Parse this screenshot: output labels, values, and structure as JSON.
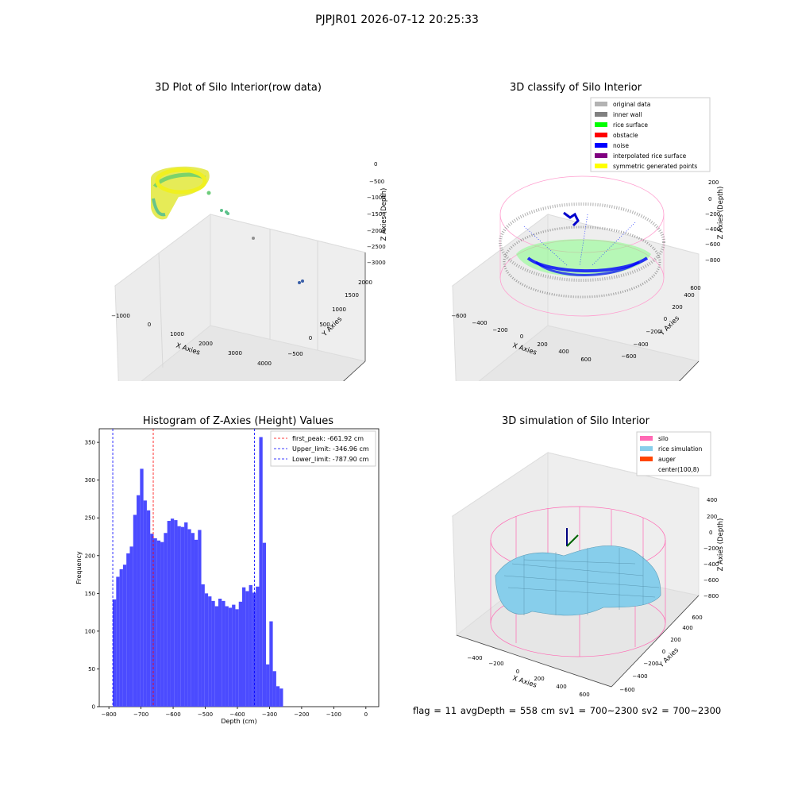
{
  "suptitle": "PJPJR01 2026-07-12 20:25:33",
  "status_text": "flag = 11   avgDepth = 558 cm   sv1 = 700~2300   sv2 = 700~2300",
  "panels": {
    "raw": {
      "title": "3D Plot of Silo Interior(row data)",
      "xlabel": "X Axies",
      "ylabel": "Y Axies",
      "zlabel": "Z Axies (Depth)",
      "xticks": [
        "−1000",
        "0",
        "1000",
        "2000",
        "3000",
        "4000"
      ],
      "yticks": [
        "−500",
        "0",
        "500",
        "1000",
        "1500",
        "2000"
      ],
      "zticks": [
        "0",
        "−500",
        "−1000",
        "−1500",
        "−2000",
        "−2500",
        "−3000"
      ]
    },
    "classify": {
      "title": "3D classify of Silo Interior",
      "xlabel": "X Axies",
      "ylabel": "Y Axies",
      "zlabel": "Z Axies (Depth)",
      "xticks": [
        "−600",
        "−400",
        "−200",
        "0",
        "200",
        "400",
        "600"
      ],
      "yticks": [
        "−600",
        "−400",
        "−200",
        "0",
        "200",
        "400",
        "600"
      ],
      "zticks": [
        "200",
        "0",
        "−200",
        "−400",
        "−600",
        "−800"
      ],
      "legend": [
        {
          "label": "original data",
          "color": "#b3b3b3"
        },
        {
          "label": "inner wall",
          "color": "#808080"
        },
        {
          "label": "rice surface",
          "color": "#00ff00"
        },
        {
          "label": "obstacle",
          "color": "#ff0000"
        },
        {
          "label": "noise",
          "color": "#0000ff"
        },
        {
          "label": "interpolated rice surface",
          "color": "#800080"
        },
        {
          "label": "symmetric generated points",
          "color": "#ffff00"
        }
      ]
    },
    "simulation": {
      "title": "3D simulation of Silo Interior",
      "xlabel": "X Axies",
      "ylabel": "Y Axies",
      "zlabel": "Z Axies (Depth)",
      "xticks": [
        "−400",
        "−200",
        "0",
        "200",
        "400",
        "600"
      ],
      "yticks": [
        "−600",
        "−400",
        "−200",
        "0",
        "200",
        "400",
        "600"
      ],
      "zticks": [
        "400",
        "200",
        "0",
        "−200",
        "−400",
        "−600",
        "−800"
      ],
      "legend": [
        {
          "label": "silo",
          "color": "#ff69b4"
        },
        {
          "label": "rice simulation",
          "color": "#87ceeb"
        },
        {
          "label": "auger",
          "color": "#ff4500"
        },
        {
          "label": "center(100,8)",
          "color": ""
        }
      ]
    }
  },
  "chart_data": {
    "type": "bar",
    "title": "Histogram of Z-Axies (Height) Values",
    "xlabel": "Depth (cm)",
    "ylabel": "Frequency",
    "bin_start": -787.9,
    "bin_width": 10.6,
    "values": [
      142,
      172,
      182,
      188,
      203,
      212,
      254,
      280,
      315,
      273,
      260,
      229,
      223,
      220,
      218,
      230,
      246,
      249,
      247,
      239,
      238,
      244,
      235,
      230,
      221,
      234,
      162,
      150,
      146,
      140,
      133,
      143,
      140,
      133,
      131,
      135,
      129,
      139,
      158,
      153,
      161,
      151,
      159,
      357,
      217,
      56,
      113,
      47,
      27,
      24
    ],
    "xlim": [
      -830,
      40
    ],
    "ylim": [
      0,
      368
    ],
    "xticks": [
      -800,
      -700,
      -600,
      -500,
      -400,
      -300,
      -200,
      -100,
      0
    ],
    "yticks": [
      0,
      50,
      100,
      150,
      200,
      250,
      300,
      350
    ],
    "bar_color": "#4b4bff",
    "lines": [
      {
        "label": "first_peak: -661.92 cm",
        "x": -661.92,
        "color": "#ff0000"
      },
      {
        "label": "Upper_limit: -346.96 cm",
        "x": -346.96,
        "color": "#0000ff"
      },
      {
        "label": "Lower_limit: -787.90 cm",
        "x": -787.9,
        "color": "#0000ff"
      }
    ],
    "legend_position": "upper-right"
  }
}
